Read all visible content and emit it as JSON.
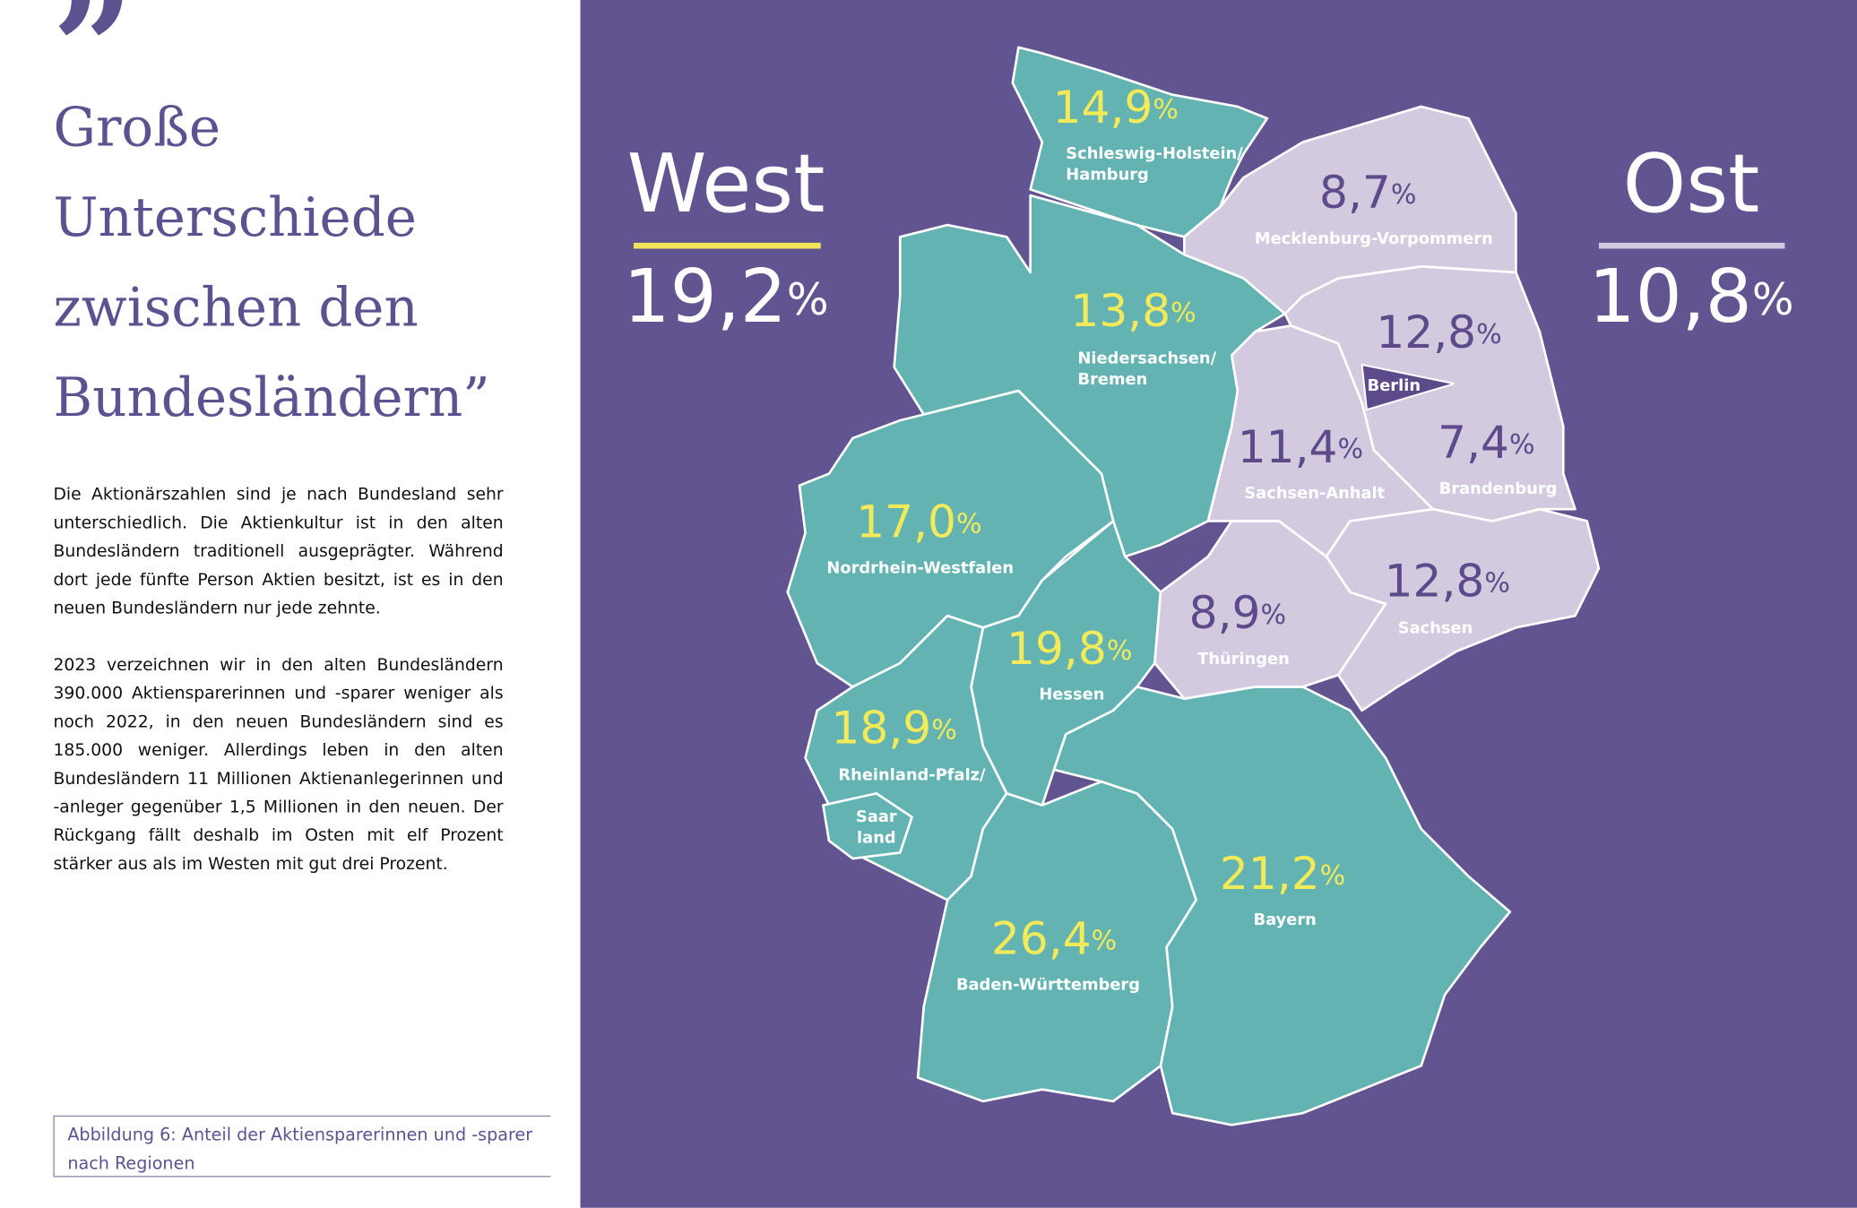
{
  "quote_mark": "”",
  "title_lines": [
    "Große",
    "Unterschiede",
    "zwischen den",
    "Bundesländern”"
  ],
  "body": [
    "Die Aktionärszahlen sind je nach Bundesland sehr unterschiedlich. Die Aktienkultur ist in den alten Bundesländern traditionell ausgeprägter. Während dort jede fünfte Person Aktien besitzt, ist es in den neuen Bundesländern nur jede zehnte.",
    "2023 verzeichnen wir in den alten Bundesländern 390.000 Aktiensparerinnen und -sparer weniger als noch 2022, in den neuen Bundesländern sind es 185.000 weniger. Allerdings leben in den alten Bundesländern 11 Millionen Aktienanlegerinnen und -anleger gegenüber 1,5 Millionen in den neuen. Der Rückgang fällt deshalb im Osten mit elf Prozent stärker aus als im Westen mit gut drei Prozent."
  ],
  "caption": "Abbildung 6:  Anteil der Aktiensparerinnen und -sparer nach Regionen",
  "west": {
    "label": "West",
    "value": "19,2",
    "unit": "%"
  },
  "ost": {
    "label": "Ost",
    "value": "10,8",
    "unit": "%"
  },
  "regions": [
    {
      "name_lines": [
        "Schleswig-Holstein/",
        "Hamburg"
      ],
      "value": "14,9",
      "unit": "%"
    },
    {
      "name_lines": [
        "Niedersachsen/",
        "Bremen"
      ],
      "value": "13,8",
      "unit": "%"
    },
    {
      "name_lines": [
        "Nordrhein-Westfalen"
      ],
      "value": "17,0",
      "unit": "%"
    },
    {
      "name_lines": [
        "Hessen"
      ],
      "value": "19,8",
      "unit": "%"
    },
    {
      "name_lines": [
        "Rheinland-Pfalz/"
      ],
      "value": "18,9",
      "unit": "%"
    },
    {
      "name_lines": [
        "Saar",
        "land"
      ]
    },
    {
      "name_lines": [
        "Baden-Württemberg"
      ],
      "value": "26,4",
      "unit": "%"
    },
    {
      "name_lines": [
        "Bayern"
      ],
      "value": "21,2",
      "unit": "%"
    },
    {
      "name_lines": [
        "Mecklenburg-Vorpommern"
      ],
      "value": "8,7",
      "unit": "%"
    },
    {
      "name_lines": [
        "Berlin"
      ],
      "value": "12,8",
      "unit": "%"
    },
    {
      "name_lines": [
        "Sachsen-Anhalt"
      ],
      "value": "11,4",
      "unit": "%"
    },
    {
      "name_lines": [
        "Brandenburg"
      ],
      "value": "7,4",
      "unit": "%"
    },
    {
      "name_lines": [
        "Thüringen"
      ],
      "value": "8,9",
      "unit": "%"
    },
    {
      "name_lines": [
        "Sachsen"
      ],
      "value": "12,8",
      "unit": "%"
    }
  ]
}
